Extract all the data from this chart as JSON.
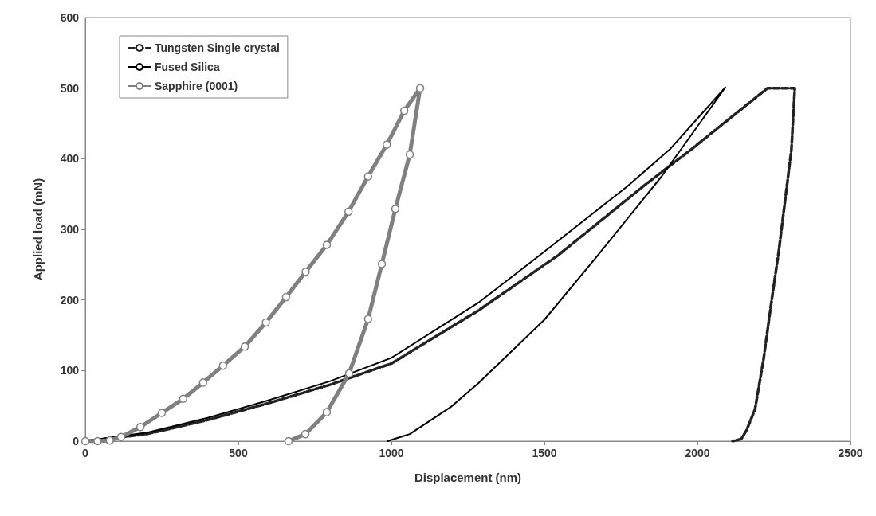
{
  "chart_data": {
    "type": "line",
    "xlabel": "Displacement (nm)",
    "ylabel": "Applied load (mN)",
    "xlim": [
      0,
      2500
    ],
    "xticks": [
      0,
      500,
      1000,
      1500,
      2000,
      2500
    ],
    "ylim": [
      0,
      600
    ],
    "yticks": [
      0,
      100,
      200,
      300,
      400,
      500,
      600
    ],
    "grid": false,
    "legend": "top left",
    "series": [
      {
        "name": "Tungsten Single crystal",
        "color": "#222222",
        "line_style": "dashed",
        "marker": "none",
        "x": [
          0,
          200,
          400,
          600,
          800,
          1000,
          1284,
          1544,
          1823,
          1979,
          2229,
          2318,
          2307,
          2266,
          2240,
          2216,
          2188,
          2160,
          2143,
          2115
        ],
        "values": [
          0,
          10,
          30,
          54,
          80,
          110,
          185,
          263,
          361,
          413,
          500,
          500,
          413,
          270,
          192,
          116,
          45,
          15,
          3,
          0
        ]
      },
      {
        "name": "Fused Silica",
        "color": "#000000",
        "line_style": "solid",
        "marker": "none",
        "x": [
          0,
          200,
          400,
          600,
          800,
          1000,
          1284,
          1484,
          1771,
          1909,
          2091,
          1883,
          1674,
          1500,
          1284,
          1193,
          1060,
          987
        ],
        "values": [
          0,
          12,
          33,
          58,
          85,
          118,
          196,
          263,
          361,
          413,
          501,
          375,
          263,
          172,
          82,
          48,
          10,
          0
        ]
      },
      {
        "name": "Sapphire (0001)",
        "color": "#808080",
        "line_style": "solid",
        "marker": "circle",
        "x": [
          0,
          40,
          80,
          117,
          180,
          250,
          320,
          385,
          450,
          521,
          590,
          656,
          720,
          789,
          860,
          924,
          985,
          1042,
          1094,
          1060,
          1013,
          969,
          924,
          862,
          789,
          719,
          664
        ],
        "values": [
          0,
          0,
          1,
          6,
          20,
          40,
          60,
          83,
          107,
          134,
          168,
          204,
          240,
          278,
          325,
          375,
          420,
          468,
          500,
          406,
          329,
          251,
          173,
          96,
          41,
          10,
          0
        ]
      }
    ]
  }
}
